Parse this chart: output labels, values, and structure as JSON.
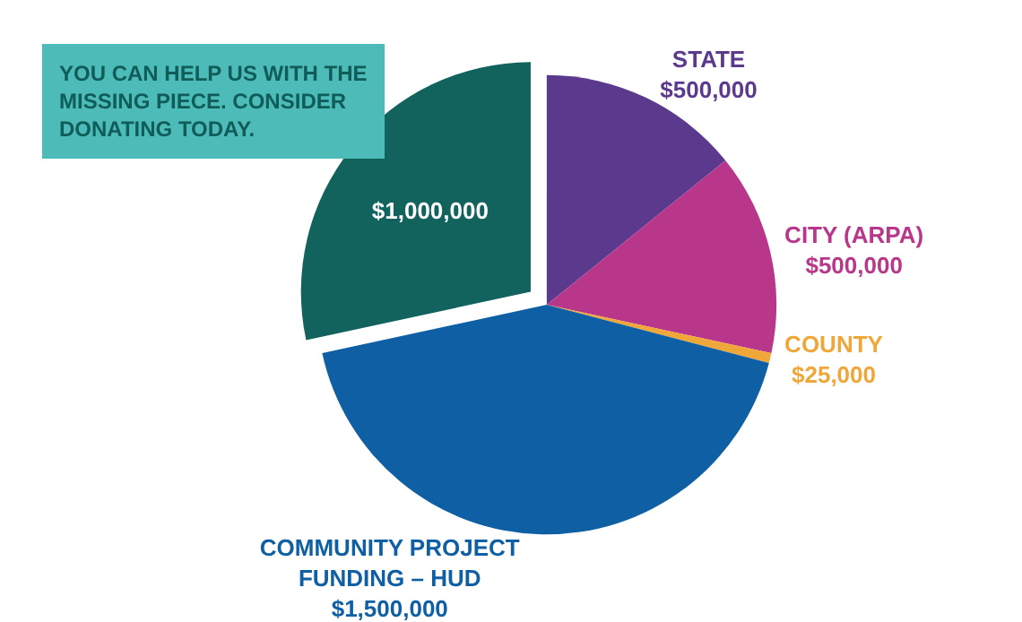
{
  "chart_data": {
    "type": "pie",
    "categories": [
      "STATE",
      "CITY (ARPA)",
      "COUNTY",
      "COMMUNITY PROJECT FUNDING – HUD",
      null
    ],
    "values": [
      500000,
      500000,
      25000,
      1500000,
      1000000
    ],
    "value_labels": [
      "$500,000",
      "$500,000",
      "$25,000",
      "$1,500,000",
      "$1,000,000"
    ],
    "colors": [
      "#5b3a8e",
      "#b8378b",
      "#f0a73a",
      "#0e5fa3",
      "#12625e"
    ],
    "annotations": [
      "YOU CAN HELP US WITH THE MISSING PIECE. CONSIDER DONATING TODAY."
    ]
  }
}
